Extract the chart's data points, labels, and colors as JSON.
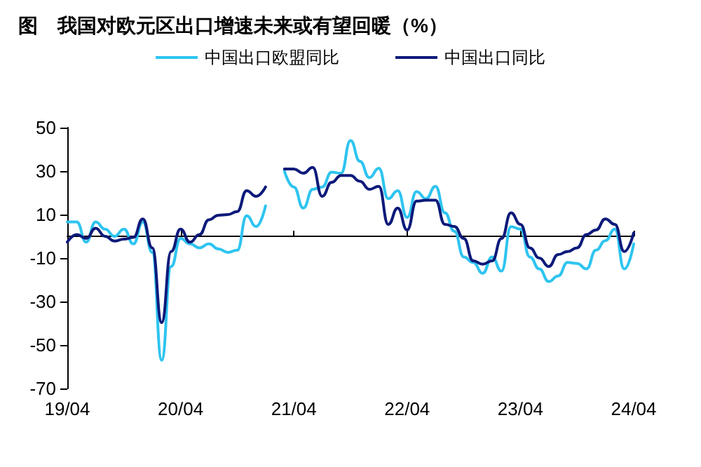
{
  "chart_data": {
    "type": "line",
    "title": "图　我国对欧元区出口增速未来或有望回暖（%）",
    "categories": [
      "19/04",
      null,
      null,
      null,
      null,
      null,
      null,
      null,
      null,
      null,
      null,
      null,
      "20/04",
      null,
      null,
      null,
      null,
      null,
      null,
      null,
      null,
      null,
      null,
      null,
      "21/04",
      null,
      null,
      null,
      null,
      null,
      null,
      null,
      null,
      null,
      null,
      null,
      "22/04",
      null,
      null,
      null,
      null,
      null,
      null,
      null,
      null,
      null,
      null,
      null,
      "23/04",
      null,
      null,
      null,
      null,
      null,
      null,
      null,
      null,
      null,
      null,
      null,
      "24/04"
    ],
    "series": [
      {
        "name": "中国出口欧盟同比",
        "color": "#2ec4f0",
        "values": [
          6.6,
          6.6,
          -2.7,
          6.6,
          3.3,
          0,
          3.3,
          -3.5,
          6.6,
          -7.4,
          -57,
          -13.9,
          -1,
          -3.5,
          -5.3,
          -3.5,
          -5.8,
          -7.4,
          -6.4,
          9.4,
          4.5,
          14,
          null,
          30,
          22.7,
          13,
          21.6,
          22.7,
          29.5,
          29,
          44,
          34.5,
          27,
          31.3,
          17.3,
          21,
          8.7,
          20.6,
          17.3,
          23,
          10.8,
          2.3,
          -9.5,
          -12,
          -17,
          -9.5,
          -16,
          4.4,
          3.3,
          -9.5,
          -15,
          -20.8,
          -18.2,
          -12,
          -12.5,
          -15,
          -6.4,
          -2,
          3.3,
          -15,
          -3.5
        ]
      },
      {
        "name": "中国出口同比",
        "color": "#0d1a7a",
        "values": [
          -2.7,
          0.8,
          -1,
          3.7,
          0,
          -2.2,
          -1.3,
          -0.5,
          8,
          -5.3,
          -39.7,
          -7,
          3.3,
          -2.7,
          0.8,
          7.6,
          9.7,
          10,
          11.4,
          21,
          18.4,
          22.7,
          null,
          31,
          31,
          29,
          31.7,
          18.4,
          24.8,
          28,
          28,
          25.3,
          21.6,
          23,
          5.5,
          13,
          2.9,
          16.2,
          16.6,
          16.6,
          5.5,
          4.5,
          -1,
          -11.3,
          -12.8,
          -11.3,
          -1,
          10.8,
          5.5,
          -5.3,
          -10,
          -13.9,
          -8.4,
          -7,
          -5.3,
          0.8,
          2.9,
          8,
          5.5,
          -7,
          1.6
        ]
      }
    ],
    "ylim": [
      -70,
      50
    ],
    "yticks": [
      -70,
      -50,
      -30,
      -10,
      10,
      30,
      50
    ],
    "grid": false,
    "legend": "top",
    "marker": "none",
    "line_style": "solid"
  }
}
